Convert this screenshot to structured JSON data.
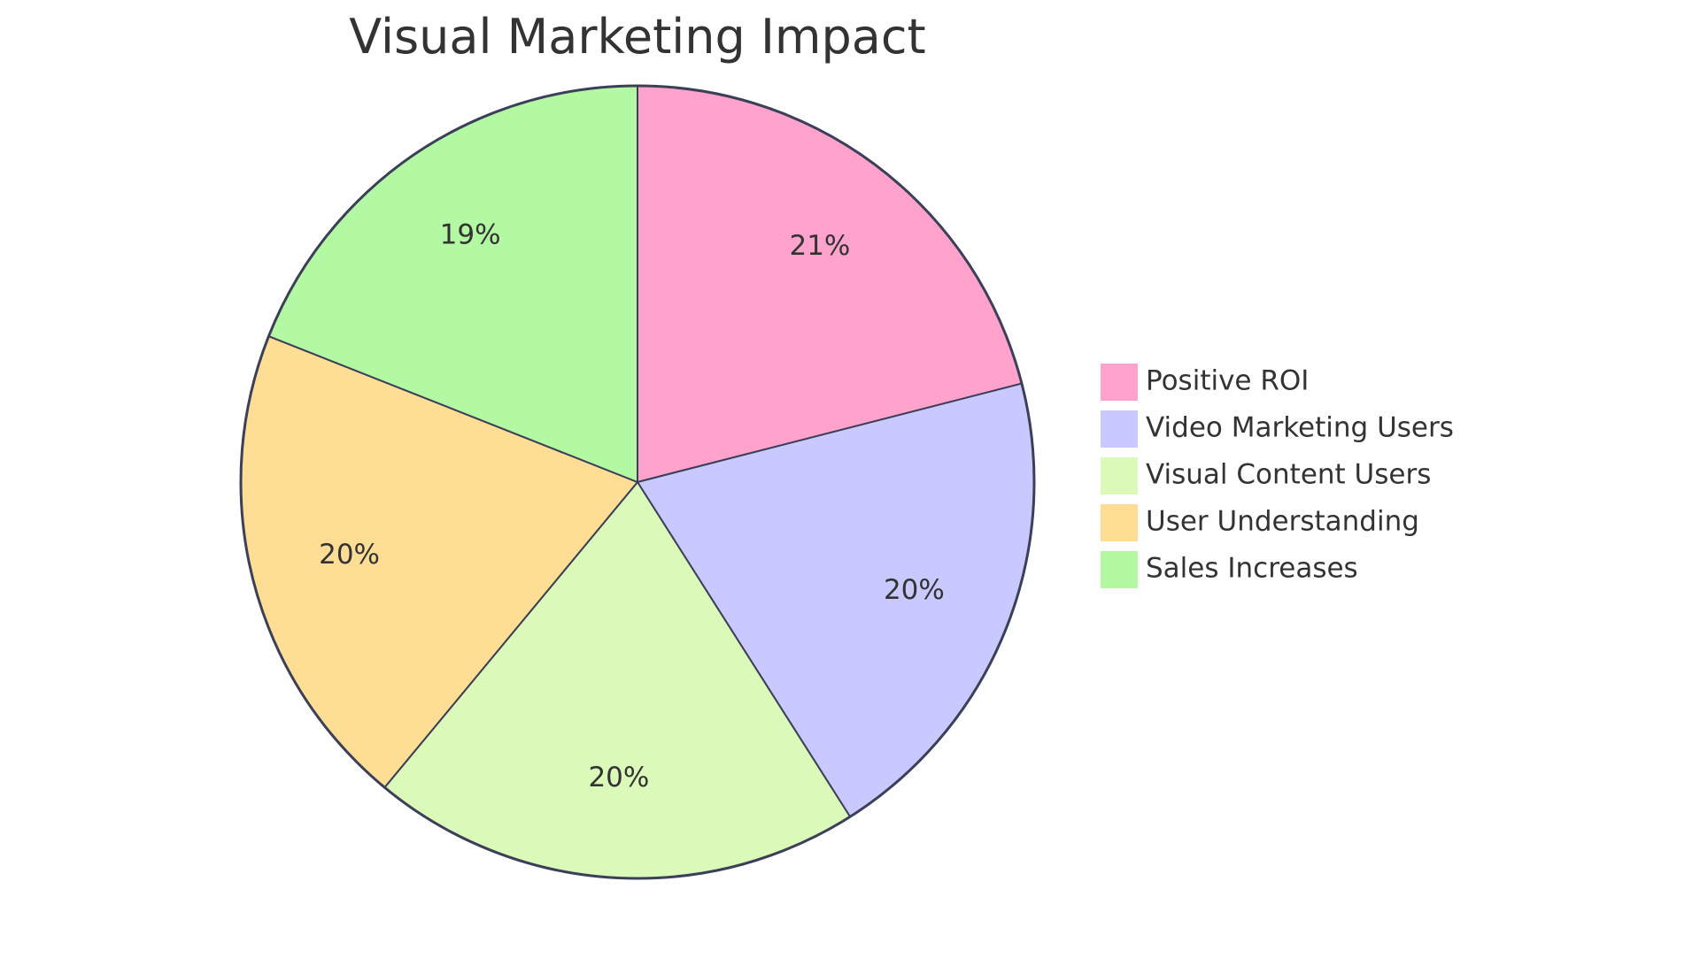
{
  "chart_data": {
    "type": "pie",
    "title": "Visual Marketing Impact",
    "slices": [
      {
        "name": "Positive ROI",
        "value": 21,
        "label": "21%",
        "color": "#ffa3cd"
      },
      {
        "name": "Video Marketing Users",
        "value": 20,
        "label": "20%",
        "color": "#c9c9ff"
      },
      {
        "name": "Visual Content Users",
        "value": 20,
        "label": "20%",
        "color": "#dbfab9"
      },
      {
        "name": "User Understanding",
        "value": 20,
        "label": "20%",
        "color": "#fedd94"
      },
      {
        "name": "Sales Increases",
        "value": 19,
        "label": "19%",
        "color": "#b3f8a2"
      }
    ],
    "legend_position": "right",
    "start_angle": "top",
    "direction": "clockwise",
    "outline_color": "#3b3f58"
  }
}
